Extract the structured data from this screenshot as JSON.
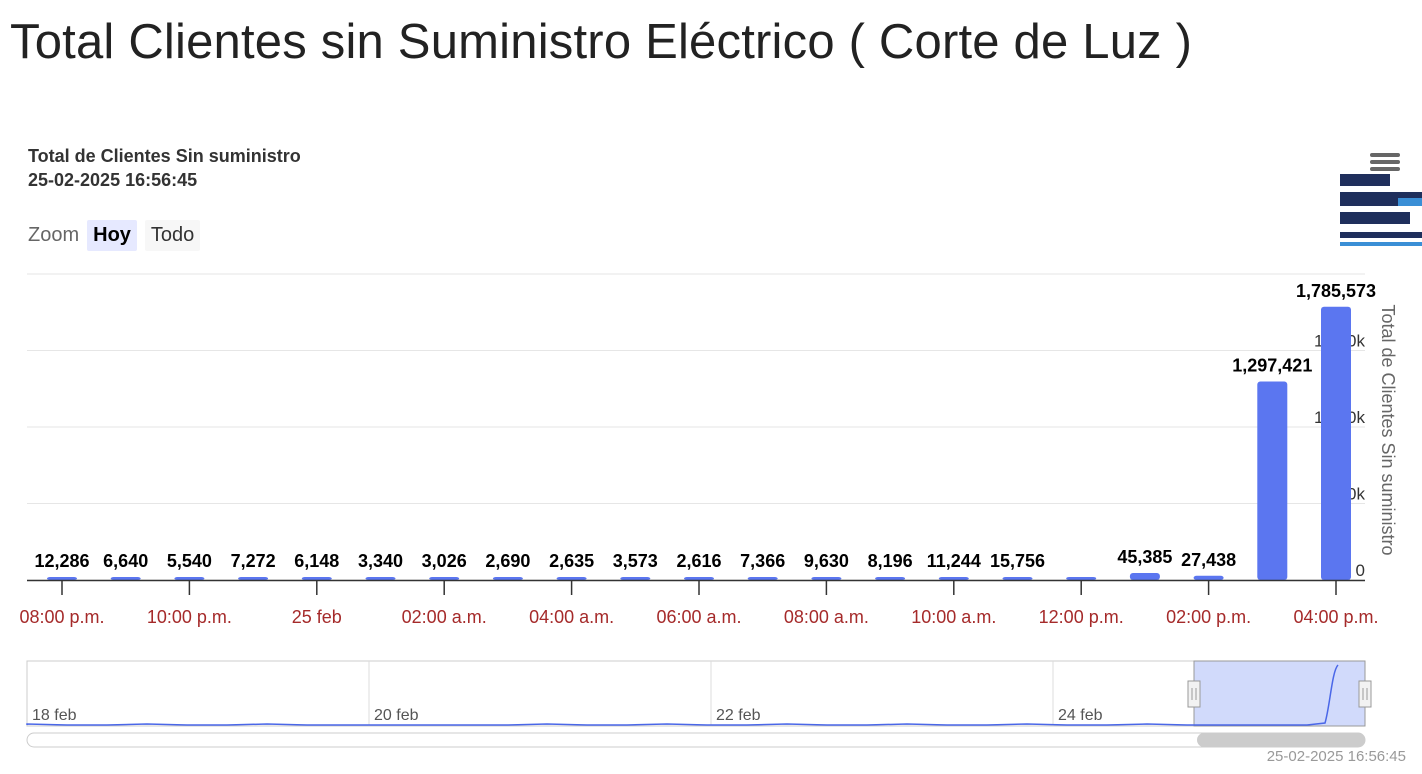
{
  "page_title": "Total Clientes sin Suministro Eléctrico ( Corte de Luz )",
  "chart": {
    "title_line1": "Total de Clientes Sin suministro",
    "title_line2": "25-02-2025 16:56:45",
    "zoom_label": "Zoom",
    "zoom_buttons": [
      "Hoy",
      "Todo"
    ],
    "zoom_active": "Hoy",
    "credits": "25-02-2025 16:56:45",
    "menu_icon": "hamburger-menu-icon",
    "bar_color": "#5b76f0",
    "x_label_color": "#a52a2a"
  },
  "chart_data": {
    "type": "bar",
    "title": "Total de Clientes Sin suministro",
    "subtitle": "25-02-2025 16:56:45",
    "ylabel": "Total de Clientes Sin suministro",
    "xlabel": "",
    "ylim": [
      0,
      2000000
    ],
    "y_ticks": [
      0,
      500000,
      1000000,
      1500000
    ],
    "y_tick_labels": [
      "0",
      "500k",
      "1,000k",
      "1,500k"
    ],
    "x_tick_labels": [
      "08:00 p.m.",
      "10:00 p.m.",
      "25 feb",
      "02:00 a.m.",
      "04:00 a.m.",
      "06:00 a.m.",
      "08:00 a.m.",
      "10:00 a.m.",
      "12:00 p.m.",
      "02:00 p.m.",
      "04:00 p.m."
    ],
    "series": [
      {
        "x": [
          "2025-02-24 20:00",
          "2025-02-24 21:00",
          "2025-02-24 22:00",
          "2025-02-24 23:00",
          "2025-02-25 00:00",
          "2025-02-25 01:00",
          "2025-02-25 02:00",
          "2025-02-25 03:00",
          "2025-02-25 04:00",
          "2025-02-25 05:00",
          "2025-02-25 06:00",
          "2025-02-25 07:00",
          "2025-02-25 08:00",
          "2025-02-25 09:00",
          "2025-02-25 10:00",
          "2025-02-25 11:00",
          "2025-02-25 12:00",
          "2025-02-25 13:00",
          "2025-02-25 14:00",
          "2025-02-25 15:00",
          "2025-02-25 16:00"
        ],
        "values": [
          12286,
          6640,
          5540,
          7272,
          6148,
          3340,
          3026,
          2690,
          2635,
          3573,
          2616,
          7366,
          9630,
          8196,
          11244,
          15756,
          20000,
          45385,
          27438,
          1297421,
          1785573
        ],
        "data_labels": [
          "12,286",
          "6,640",
          "5,540",
          "7,272",
          "6,148",
          "3,340",
          "3,026",
          "2,690",
          "2,635",
          "3,573",
          "2,616",
          "7,366",
          "9,630",
          "8,196",
          "11,244",
          "15,756",
          "",
          "45,385",
          "27,438",
          "1,297,421",
          "1,785,573"
        ]
      }
    ],
    "navigator": {
      "x_tick_labels": [
        "18 feb",
        "20 feb",
        "22 feb",
        "24 feb"
      ]
    },
    "grid": true
  }
}
